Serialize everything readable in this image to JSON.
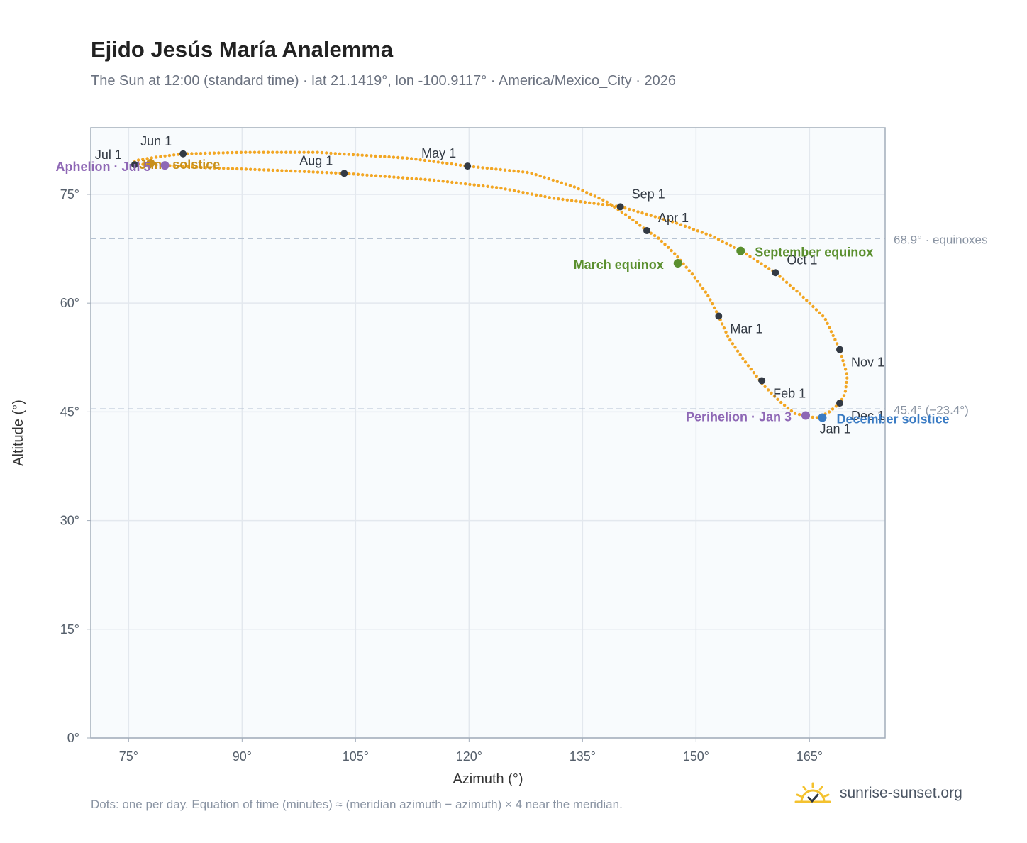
{
  "title": "Ejido Jesús María Analemma",
  "subtitle": "The Sun at 12:00 (standard time) · lat 21.1419°, lon -100.9117° · America/Mexico_City · 2026",
  "footnote": "Dots: one per day. Equation of time (minutes) ≈ (meridian azimuth − azimuth) × 4 near the meridian.",
  "brand": {
    "text": "sunrise-sunset.org",
    "icon": "sun-checkmark-logo-icon"
  },
  "colors": {
    "curve": "#f2a623",
    "month_marker": "#333a44",
    "equinox": "#5a8f2e",
    "aphelion_perihelion": "#8e67b5",
    "june_solstice": "#c8901a",
    "december_solstice": "#3b7cc4",
    "reference_line": "#b5c2d2",
    "plot_background": "#f8fbfd",
    "grid": "#e3e8ee",
    "frame": "#a2adba"
  },
  "chart_data": {
    "type": "scatter",
    "title": "Ejido Jesús María Analemma",
    "xlabel": "Azimuth (°)",
    "ylabel": "Altitude (°)",
    "xlim": [
      70,
      175
    ],
    "ylim": [
      0,
      84.2
    ],
    "xticks": [
      75,
      90,
      105,
      120,
      135,
      150,
      165
    ],
    "xtick_labels": [
      "75°",
      "90°",
      "105°",
      "120°",
      "135°",
      "150°",
      "165°"
    ],
    "yticks": [
      0,
      15,
      30,
      45,
      60,
      75
    ],
    "ytick_labels": [
      "0°",
      "15°",
      "30°",
      "45°",
      "60°",
      "75°"
    ],
    "grid": true,
    "series": [
      {
        "points": [
          [
            166.0,
            44.2
          ],
          [
            165.0,
            44.3
          ],
          [
            163.0,
            44.8
          ],
          [
            161.0,
            46.5
          ],
          [
            159.0,
            48.6
          ],
          [
            156.5,
            51.9
          ],
          [
            154.3,
            55.2
          ],
          [
            153.0,
            58.2
          ],
          [
            151.5,
            61.2
          ],
          [
            149.5,
            64.0
          ],
          [
            147.3,
            66.7
          ],
          [
            145.0,
            69.0
          ],
          [
            143.5,
            70.0
          ],
          [
            141.0,
            72.0
          ],
          [
            138.0,
            74.1
          ],
          [
            134.0,
            76.0
          ],
          [
            128.0,
            78.0
          ],
          [
            119.8,
            78.9
          ],
          [
            112.0,
            80.0
          ],
          [
            100.0,
            80.8
          ],
          [
            90.0,
            80.8
          ],
          [
            82.2,
            80.6
          ],
          [
            79.0,
            80.2
          ],
          [
            76.0,
            79.7
          ],
          [
            75.5,
            79.2
          ],
          [
            78.0,
            79.1
          ],
          [
            85.0,
            78.7
          ],
          [
            95.0,
            78.3
          ],
          [
            103.5,
            77.9
          ],
          [
            115.0,
            77.0
          ],
          [
            124.0,
            75.9
          ],
          [
            131.0,
            74.5
          ],
          [
            140.0,
            73.3
          ],
          [
            147.0,
            71.2
          ],
          [
            152.0,
            69.3
          ],
          [
            156.0,
            67.2
          ],
          [
            160.5,
            64.2
          ],
          [
            163.5,
            61.5
          ],
          [
            167.0,
            58.0
          ],
          [
            169.0,
            53.6
          ],
          [
            170.0,
            50.0
          ],
          [
            169.7,
            47.5
          ],
          [
            169.0,
            46.2
          ],
          [
            167.5,
            44.9
          ],
          [
            166.0,
            44.2
          ]
        ]
      }
    ],
    "month_markers": [
      {
        "label": "Jan 1",
        "azimuth": 166.7,
        "altitude": 44.2
      },
      {
        "label": "Feb 1",
        "azimuth": 158.7,
        "altitude": 49.3
      },
      {
        "label": "Mar 1",
        "azimuth": 153.0,
        "altitude": 58.2
      },
      {
        "label": "Apr 1",
        "azimuth": 143.5,
        "altitude": 70.0
      },
      {
        "label": "May 1",
        "azimuth": 119.8,
        "altitude": 78.9
      },
      {
        "label": "Jun 1",
        "azimuth": 82.2,
        "altitude": 80.6
      },
      {
        "label": "Jul 1",
        "azimuth": 75.8,
        "altitude": 79.1
      },
      {
        "label": "Aug 1",
        "azimuth": 103.5,
        "altitude": 77.9
      },
      {
        "label": "Sep 1",
        "azimuth": 140.0,
        "altitude": 73.3
      },
      {
        "label": "Oct 1",
        "azimuth": 160.5,
        "altitude": 64.2
      },
      {
        "label": "Nov 1",
        "azimuth": 169.0,
        "altitude": 53.6
      },
      {
        "label": "Dec 1",
        "azimuth": 169.0,
        "altitude": 46.2
      }
    ],
    "events": [
      {
        "label": "March equinox",
        "azimuth": 147.6,
        "altitude": 65.5,
        "color_key": "equinox"
      },
      {
        "label": "September equinox",
        "azimuth": 155.9,
        "altitude": 67.2,
        "color_key": "equinox"
      },
      {
        "label": "June solstice",
        "azimuth": 77.9,
        "altitude": 79.3,
        "color_key": "june_solstice"
      },
      {
        "label": "December solstice",
        "azimuth": 166.7,
        "altitude": 44.2,
        "color_key": "december_solstice"
      },
      {
        "label": "Aphelion · Jul 5",
        "azimuth": 79.8,
        "altitude": 79.0,
        "color_key": "aphelion_perihelion"
      },
      {
        "label": "Perihelion · Jan 3",
        "azimuth": 164.5,
        "altitude": 44.5,
        "color_key": "aphelion_perihelion"
      }
    ],
    "reference_lines": [
      {
        "altitude": 68.9,
        "label": "68.9° · equinoxes"
      },
      {
        "altitude": 45.4,
        "label": "45.4° (−23.4°)"
      }
    ]
  }
}
